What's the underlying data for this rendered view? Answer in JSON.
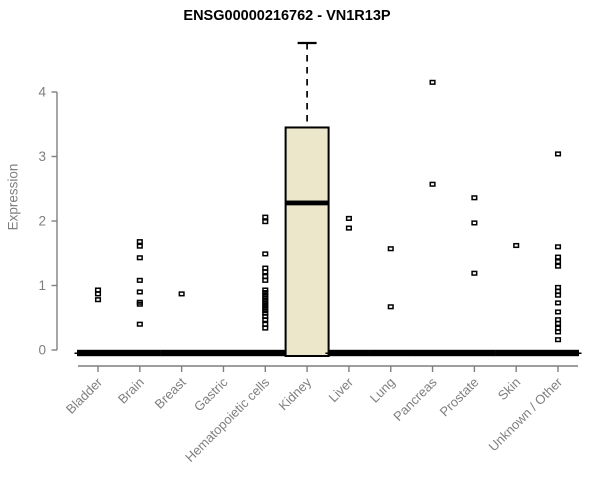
{
  "chart_data": {
    "type": "boxplot",
    "title": "ENSG00000216762 - VN1R13P",
    "ylabel": "Expression",
    "xlabel": "",
    "ylim": [
      0,
      4.8
    ],
    "yticks": [
      0,
      1,
      2,
      3,
      4
    ],
    "grid": false,
    "legend": null,
    "categories": [
      "Bladder",
      "Brain",
      "Breast",
      "Gastric",
      "Hematopoietic cells",
      "Kidney",
      "Liver",
      "Lung",
      "Pancreas",
      "Prostate",
      "Skin",
      "Unknown / Other"
    ],
    "boxes": [
      {
        "category": "Bladder",
        "q1": 0,
        "median": 0,
        "q3": 0,
        "whisker_low": 0,
        "whisker_high": 0,
        "outliers": [
          0.93,
          0.87,
          0.78
        ]
      },
      {
        "category": "Brain",
        "q1": 0,
        "median": 0,
        "q3": 0,
        "whisker_low": 0,
        "whisker_high": 0,
        "outliers": [
          1.68,
          1.61,
          1.43,
          1.08,
          0.9,
          0.74,
          0.71,
          0.4
        ]
      },
      {
        "category": "Breast",
        "q1": 0,
        "median": 0,
        "q3": 0,
        "whisker_low": 0,
        "whisker_high": 0,
        "outliers": [
          0.87
        ]
      },
      {
        "category": "Gastric",
        "q1": 0,
        "median": 0,
        "q3": 0,
        "whisker_low": 0,
        "whisker_high": 0,
        "outliers": []
      },
      {
        "category": "Hematopoietic cells",
        "q1": 0,
        "median": 0,
        "q3": 0,
        "whisker_low": 0,
        "whisker_high": 0,
        "outliers": [
          2.06,
          1.99,
          1.49,
          1.27,
          1.21,
          1.14,
          1.08,
          0.93,
          0.89,
          0.85,
          0.81,
          0.77,
          0.73,
          0.69,
          0.65,
          0.61,
          0.57,
          0.52,
          0.47,
          0.4,
          0.34
        ]
      },
      {
        "category": "Kidney",
        "q1": 0,
        "median": 2.28,
        "q3": 3.45,
        "whisker_low": 0,
        "whisker_high": 4.76,
        "outliers": []
      },
      {
        "category": "Liver",
        "q1": 0,
        "median": 0,
        "q3": 0,
        "whisker_low": 0,
        "whisker_high": 0,
        "outliers": [
          2.04,
          1.89
        ]
      },
      {
        "category": "Lung",
        "q1": 0,
        "median": 0,
        "q3": 0,
        "whisker_low": 0,
        "whisker_high": 0,
        "outliers": [
          1.57,
          0.67
        ]
      },
      {
        "category": "Pancreas",
        "q1": 0,
        "median": 0,
        "q3": 0,
        "whisker_low": 0,
        "whisker_high": 0,
        "outliers": [
          4.15,
          2.57
        ]
      },
      {
        "category": "Prostate",
        "q1": 0,
        "median": 0,
        "q3": 0,
        "whisker_low": 0,
        "whisker_high": 0,
        "outliers": [
          2.36,
          1.97,
          1.19
        ]
      },
      {
        "category": "Skin",
        "q1": 0,
        "median": 0,
        "q3": 0,
        "whisker_low": 0,
        "whisker_high": 0,
        "outliers": [
          1.62
        ]
      },
      {
        "category": "Unknown / Other",
        "q1": 0,
        "median": 0,
        "q3": 0,
        "whisker_low": 0,
        "whisker_high": 0,
        "outliers": [
          3.04,
          1.6,
          1.44,
          1.37,
          1.3,
          0.97,
          0.91,
          0.85,
          0.73,
          0.59,
          0.47,
          0.41,
          0.34,
          0.28,
          0.16
        ]
      }
    ],
    "colors": {
      "box_fill": "#ECE7CB",
      "box_border": "#000000",
      "median": "#000000",
      "points": "#000000",
      "axis": "#7F7F7F",
      "title": "#000000"
    }
  }
}
